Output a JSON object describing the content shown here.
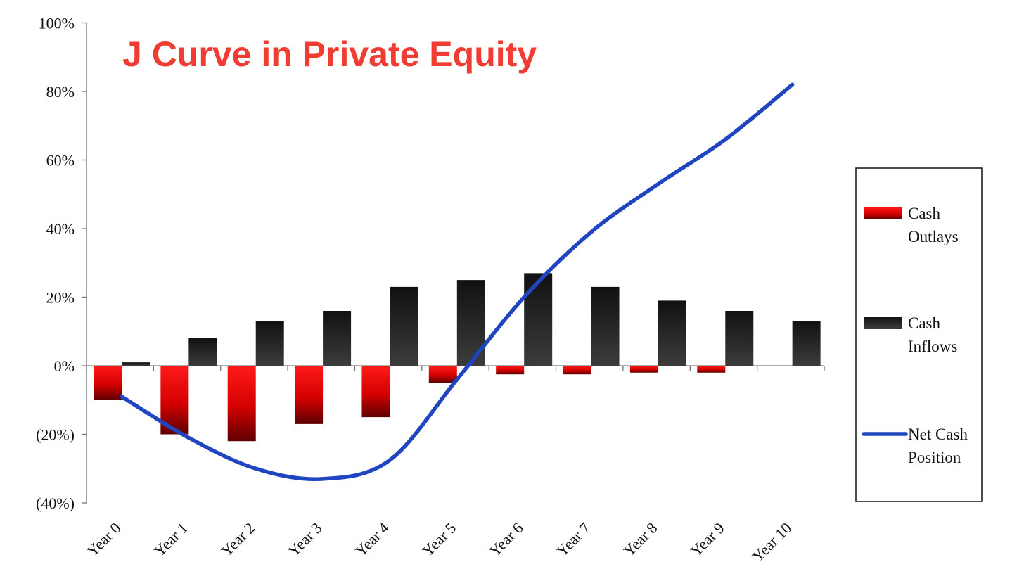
{
  "chart_data": {
    "type": "bar",
    "title": "J Curve in Private Equity",
    "categories": [
      "Year 0",
      "Year 1",
      "Year 2",
      "Year 3",
      "Year 4",
      "Year 5",
      "Year 6",
      "Year 7",
      "Year 8",
      "Year 9",
      "Year 10"
    ],
    "ylim": [
      -40,
      100
    ],
    "yticks": [
      100,
      80,
      60,
      40,
      20,
      0,
      -20,
      -40
    ],
    "ytick_labels": [
      "100%",
      "80%",
      "60%",
      "40%",
      "20%",
      "0%",
      "(20%)",
      "(40%)"
    ],
    "series": [
      {
        "name": "Cash Outlays",
        "kind": "bar",
        "color": "#e00000",
        "values": [
          -10,
          -20,
          -22,
          -17,
          -15,
          -5,
          -2.5,
          -2.5,
          -2,
          -2,
          0
        ]
      },
      {
        "name": "Cash Inflows",
        "kind": "bar",
        "color": "#222222",
        "values": [
          1,
          8,
          13,
          16,
          23,
          25,
          27,
          23,
          19,
          16,
          13
        ]
      },
      {
        "name": "Net Cash Position",
        "kind": "line",
        "color": "#1f45c0",
        "values": [
          -9,
          -21,
          -30,
          -33,
          -27.5,
          -4,
          20,
          39,
          53,
          66,
          82
        ]
      }
    ],
    "legend": {
      "placement": "right",
      "labels": [
        [
          "Cash",
          "Outlays"
        ],
        [
          "Cash",
          "Inflows"
        ],
        [
          "Net Cash",
          "Position"
        ]
      ]
    },
    "grid": false
  }
}
